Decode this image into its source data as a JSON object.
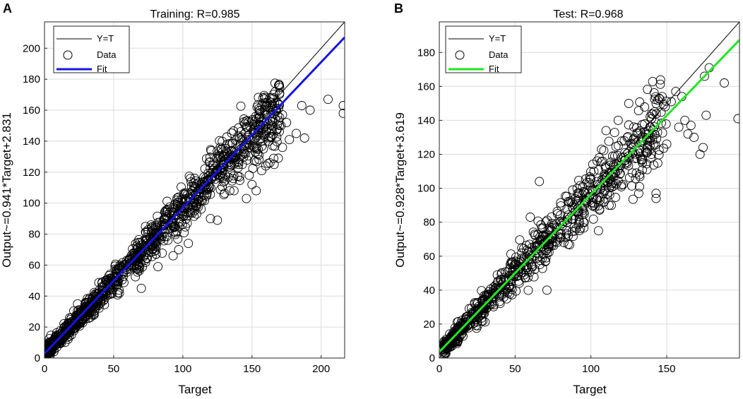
{
  "chart_data": [
    {
      "panel": "A",
      "type": "scatter",
      "title": "Training: R=0.985",
      "xlabel": "Target",
      "ylabel": "Output~=0.941*Target+2.831",
      "xlim": [
        0,
        217
      ],
      "ylim": [
        0,
        217
      ],
      "xticks": [
        0,
        50,
        100,
        150,
        200
      ],
      "yticks": [
        0,
        20,
        40,
        60,
        80,
        100,
        120,
        140,
        160,
        180,
        200
      ],
      "grid": true,
      "legend_position": "top-left",
      "legend": [
        {
          "label": "Y=T",
          "style": "thin-line",
          "color": "#000000"
        },
        {
          "label": "Data",
          "style": "circle-marker",
          "color": "#000000"
        },
        {
          "label": "Fit",
          "style": "thick-line",
          "color": "#1414e6"
        }
      ],
      "fit": {
        "slope": 0.941,
        "intercept": 2.831,
        "color": "#1414e6"
      },
      "identity_line": {
        "slope": 1,
        "intercept": 0,
        "color": "#000000"
      },
      "data_cloud": {
        "n": 1150,
        "x_range": [
          0,
          170
        ],
        "spread": 0.07,
        "seed": 11
      },
      "outliers": [
        [
          155,
          161
        ],
        [
          158,
          168
        ],
        [
          160,
          165
        ],
        [
          163,
          168
        ],
        [
          166,
          168
        ],
        [
          170,
          171
        ],
        [
          172,
          157
        ],
        [
          175,
          152
        ],
        [
          177,
          141
        ],
        [
          182,
          145
        ],
        [
          186,
          163
        ],
        [
          188,
          142
        ],
        [
          192,
          160
        ],
        [
          205,
          167
        ],
        [
          216,
          163
        ],
        [
          216,
          158
        ],
        [
          168,
          147
        ],
        [
          171,
          150
        ],
        [
          158,
          150
        ],
        [
          164,
          143
        ],
        [
          169,
          129
        ],
        [
          172,
          136
        ],
        [
          163,
          126
        ],
        [
          166,
          125
        ],
        [
          157,
          121
        ],
        [
          150,
          112
        ],
        [
          160,
          124
        ],
        [
          153,
          108
        ],
        [
          148,
          118
        ],
        [
          141,
          117
        ],
        [
          155,
          131
        ],
        [
          137,
          108
        ],
        [
          143,
          125
        ],
        [
          165,
          137
        ],
        [
          146,
          103
        ],
        [
          134,
          108
        ],
        [
          125,
          89
        ],
        [
          120,
          90
        ],
        [
          129,
          117
        ],
        [
          110,
          93
        ],
        [
          104,
          74
        ],
        [
          97,
          70
        ],
        [
          93,
          66
        ],
        [
          95,
          81
        ],
        [
          82,
          59
        ],
        [
          74,
          78
        ],
        [
          70,
          45
        ]
      ]
    },
    {
      "panel": "B",
      "type": "scatter",
      "title": "Test: R=0.968",
      "xlabel": "Target",
      "ylabel": "Output~=0.928*Target+3.619",
      "xlim": [
        0,
        198
      ],
      "ylim": [
        0,
        198
      ],
      "xticks": [
        0,
        50,
        100,
        150
      ],
      "yticks": [
        0,
        20,
        40,
        60,
        80,
        100,
        120,
        140,
        160,
        180
      ],
      "grid": true,
      "legend_position": "top-left",
      "legend": [
        {
          "label": "Y=T",
          "style": "thin-line",
          "color": "#000000"
        },
        {
          "label": "Data",
          "style": "circle-marker",
          "color": "#000000"
        },
        {
          "label": "Fit",
          "style": "thick-line",
          "color": "#22e622"
        }
      ],
      "fit": {
        "slope": 0.928,
        "intercept": 3.619,
        "color": "#22e622"
      },
      "identity_line": {
        "slope": 1,
        "intercept": 0,
        "color": "#000000"
      },
      "data_cloud": {
        "n": 780,
        "x_range": [
          3,
          150
        ],
        "spread": 0.095,
        "seed": 29
      },
      "outliers": [
        [
          197,
          141
        ],
        [
          188,
          162
        ],
        [
          178,
          171
        ],
        [
          175,
          166
        ],
        [
          176,
          143
        ],
        [
          172,
          120
        ],
        [
          174,
          124
        ],
        [
          168,
          130
        ],
        [
          166,
          137
        ],
        [
          162,
          140
        ],
        [
          164,
          132
        ],
        [
          156,
          157
        ],
        [
          158,
          136
        ],
        [
          150,
          126
        ],
        [
          145,
          153
        ],
        [
          143,
          97
        ],
        [
          143,
          94
        ],
        [
          140,
          141
        ],
        [
          139,
          125
        ],
        [
          137,
          111
        ],
        [
          134,
          115
        ],
        [
          132,
          108
        ],
        [
          130,
          109
        ],
        [
          127,
          124
        ],
        [
          125,
          150
        ],
        [
          122,
          128
        ],
        [
          118,
          140
        ],
        [
          115,
          107
        ],
        [
          112,
          90
        ],
        [
          105,
          75
        ],
        [
          95,
          80
        ],
        [
          88,
          99
        ],
        [
          85,
          67
        ],
        [
          78,
          85
        ],
        [
          71,
          40
        ],
        [
          66,
          104
        ],
        [
          60,
          83
        ],
        [
          51,
          48
        ],
        [
          147,
          154
        ],
        [
          149,
          148
        ],
        [
          153,
          151
        ],
        [
          160,
          154
        ],
        [
          142,
          145
        ],
        [
          138,
          132
        ],
        [
          110,
          134
        ],
        [
          107,
          123
        ],
        [
          102,
          110
        ]
      ]
    }
  ]
}
